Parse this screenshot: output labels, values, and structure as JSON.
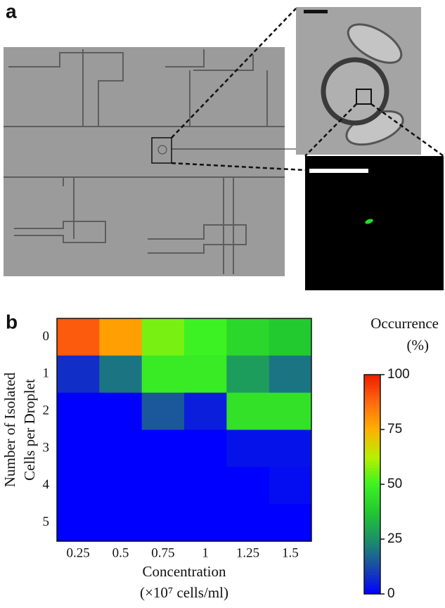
{
  "panel_a": {
    "label": "a"
  },
  "chart_data": {
    "type": "heatmap",
    "panel_label": "b",
    "categories": [
      "0.25",
      "0.5",
      "0.75",
      "1",
      "1.25",
      "1.5"
    ],
    "y_categories": [
      "0",
      "1",
      "2",
      "3",
      "4",
      "5"
    ],
    "xlabel": [
      "Concentration",
      "(×10⁷ cells/ml)"
    ],
    "ylabel": [
      "Number of Isolated",
      "Cells per Droplet"
    ],
    "colorbar_label": [
      "Occurrence",
      "(%)"
    ],
    "z": [
      [
        90,
        78,
        56,
        50,
        42,
        38
      ],
      [
        8,
        20,
        48,
        48,
        28,
        20
      ],
      [
        0,
        0,
        15,
        5,
        45,
        45
      ],
      [
        0,
        0,
        0,
        0,
        3,
        3
      ],
      [
        0,
        0,
        0,
        0,
        0,
        2
      ],
      [
        0,
        0,
        0,
        0,
        0,
        0
      ]
    ],
    "zlim": [
      0,
      100
    ],
    "zticks": [
      0,
      25,
      50,
      75,
      100
    ],
    "colormap": [
      "#0000ff",
      "#1a4aa8",
      "#1c9068",
      "#22c830",
      "#3cf222",
      "#b8f000",
      "#ffb000",
      "#ff6a10",
      "#ee1c00"
    ]
  }
}
